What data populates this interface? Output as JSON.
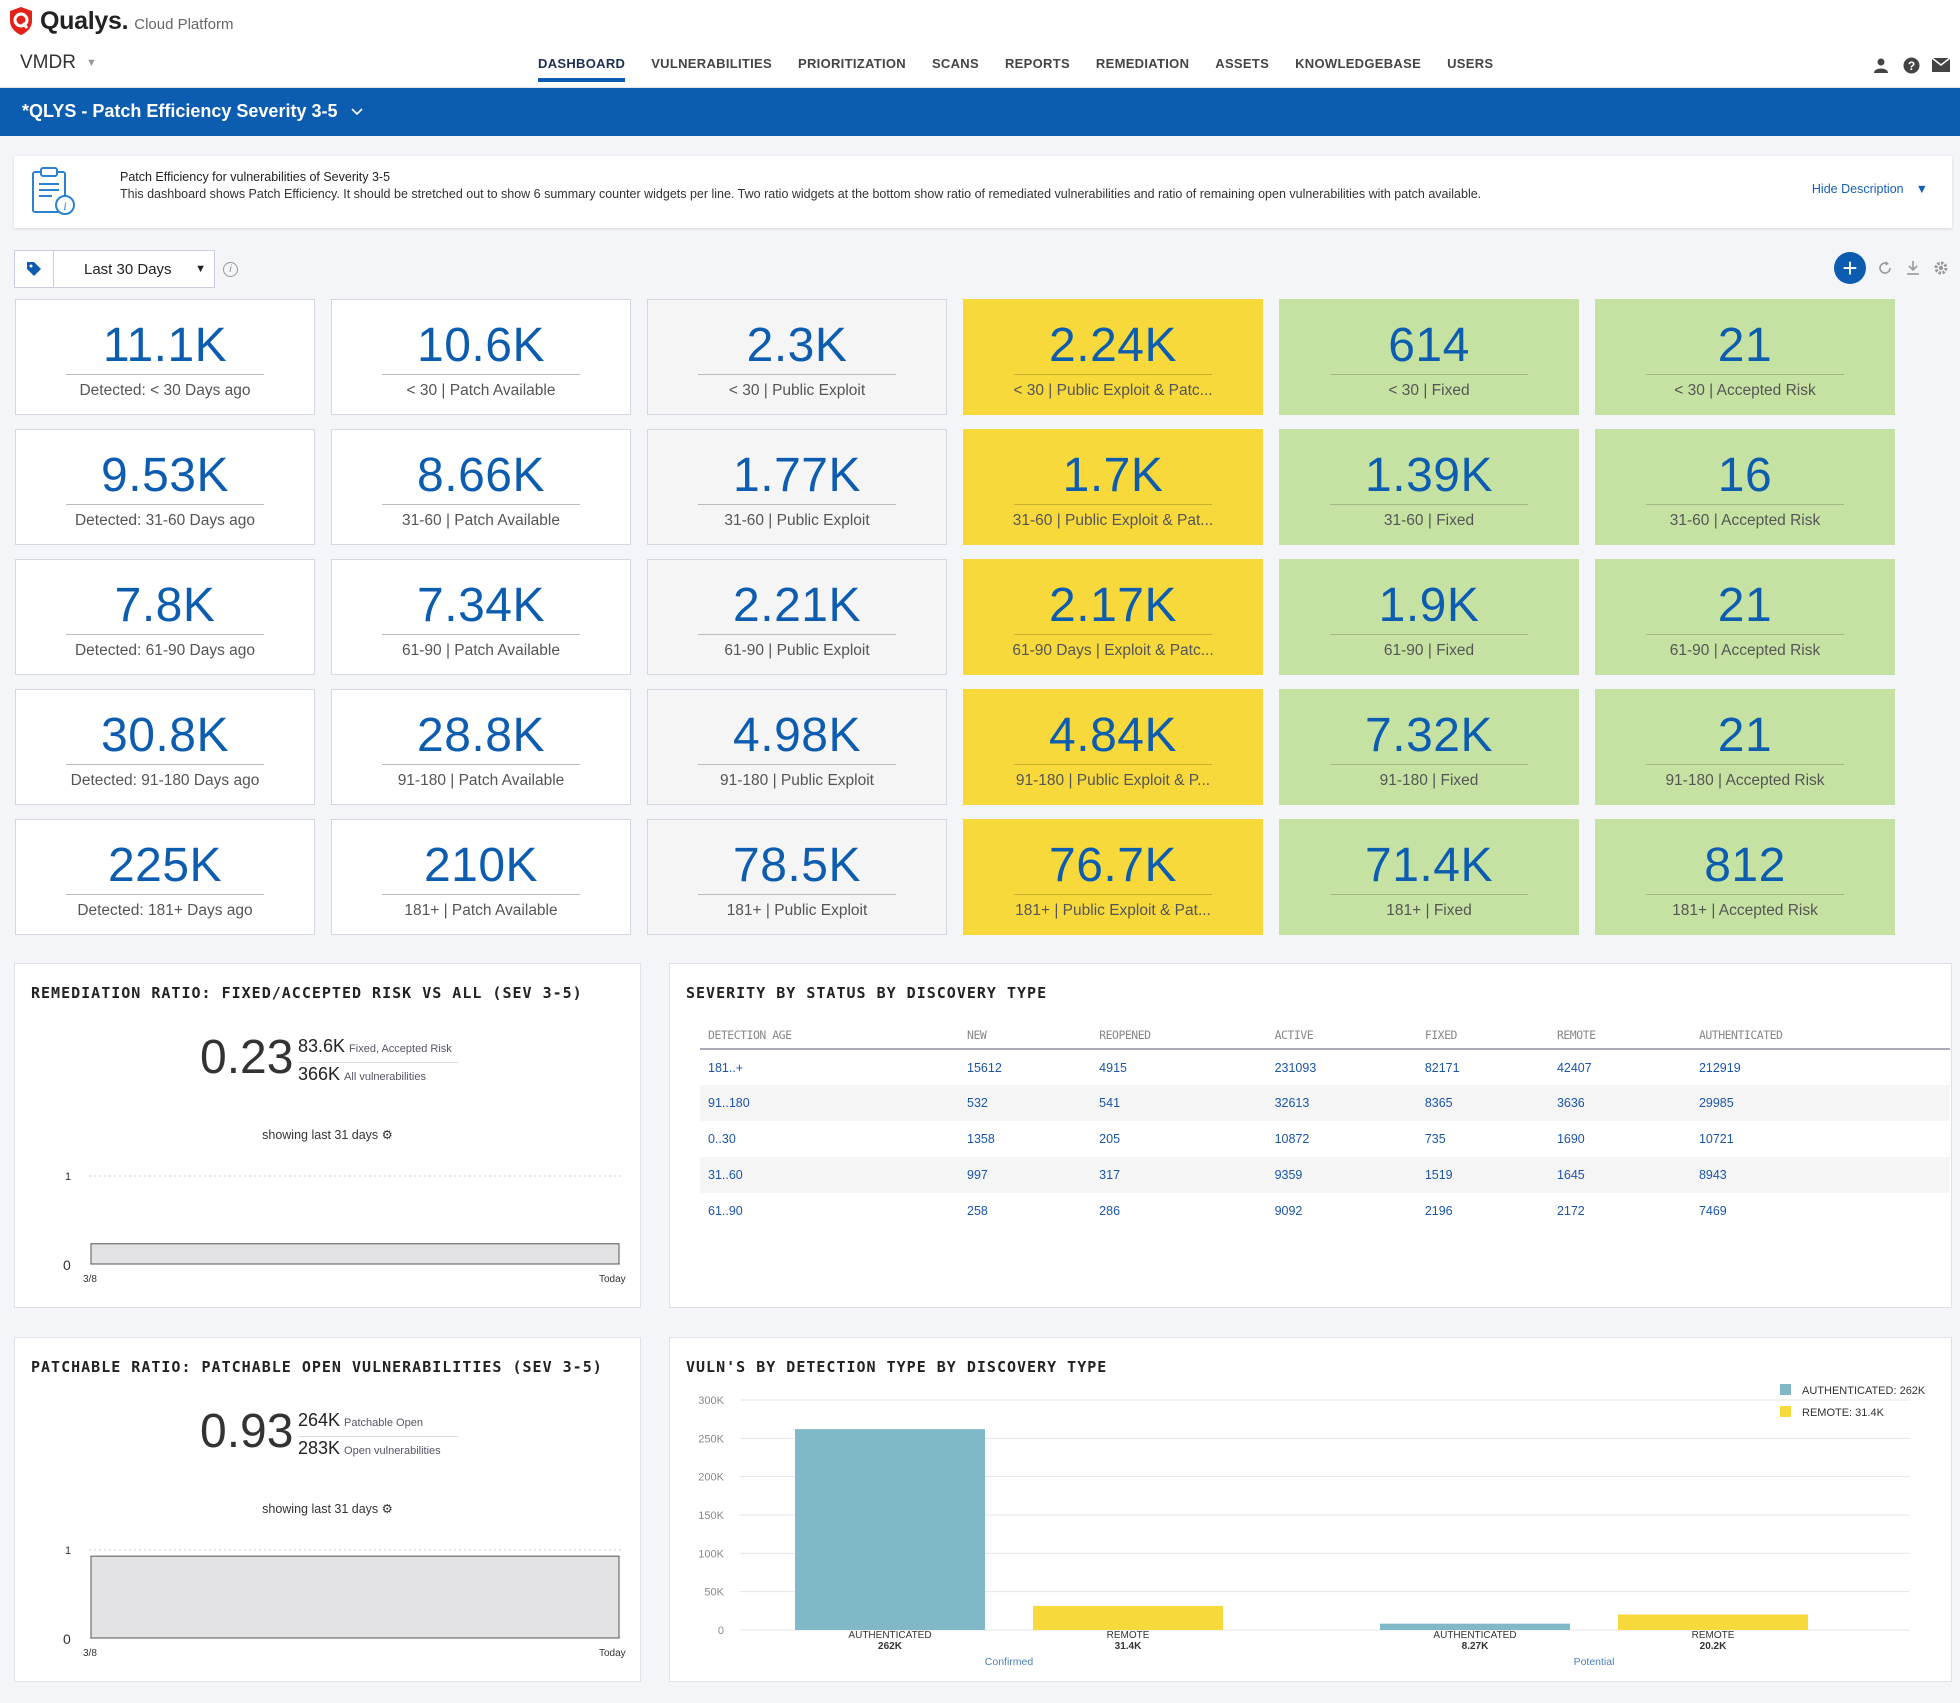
{
  "header": {
    "brand": "Qualys.",
    "platform": "Cloud Platform",
    "module": "VMDR",
    "tabs": [
      "DASHBOARD",
      "VULNERABILITIES",
      "PRIORITIZATION",
      "SCANS",
      "REPORTS",
      "REMEDIATION",
      "ASSETS",
      "KNOWLEDGEBASE",
      "USERS"
    ]
  },
  "dashboard": {
    "title": "*QLYS - Patch Efficiency Severity 3-5",
    "desc_title": "Patch Efficiency for vulnerabilities of Severity 3-5",
    "desc_text": "This dashboard shows Patch Efficiency. It should be stretched out to show 6 summary counter widgets per line. Two ratio widgets at the bottom show ratio of remediated vulnerabilities and ratio of remaining open vulnerabilities with patch available.",
    "hide_label": "Hide Description",
    "filter_value": "Last 30 Days"
  },
  "colors": {
    "brand": "#0c5cb0",
    "yellow": "#f7d93c",
    "green": "#c6e2a3",
    "teal": "#7fb9c7"
  },
  "cards": [
    {
      "v": "11.1K",
      "l": "Detected: < 30 Days ago",
      "c": "white"
    },
    {
      "v": "10.6K",
      "l": "< 30 | Patch Available",
      "c": "white"
    },
    {
      "v": "2.3K",
      "l": "< 30 | Public Exploit",
      "c": "gray"
    },
    {
      "v": "2.24K",
      "l": "< 30 | Public Exploit & Patc...",
      "c": "yellow"
    },
    {
      "v": "614",
      "l": "< 30 | Fixed",
      "c": "green"
    },
    {
      "v": "21",
      "l": "< 30 | Accepted Risk",
      "c": "green"
    },
    {
      "v": "9.53K",
      "l": "Detected: 31-60 Days ago",
      "c": "white"
    },
    {
      "v": "8.66K",
      "l": "31-60 | Patch Available",
      "c": "white"
    },
    {
      "v": "1.77K",
      "l": "31-60 | Public Exploit",
      "c": "gray"
    },
    {
      "v": "1.7K",
      "l": "31-60 | Public Exploit & Pat...",
      "c": "yellow"
    },
    {
      "v": "1.39K",
      "l": "31-60 | Fixed",
      "c": "green"
    },
    {
      "v": "16",
      "l": "31-60 | Accepted Risk",
      "c": "green"
    },
    {
      "v": "7.8K",
      "l": "Detected: 61-90 Days ago",
      "c": "white"
    },
    {
      "v": "7.34K",
      "l": "61-90 | Patch Available",
      "c": "white"
    },
    {
      "v": "2.21K",
      "l": "61-90 | Public Exploit",
      "c": "gray"
    },
    {
      "v": "2.17K",
      "l": "61-90 Days | Exploit & Patc...",
      "c": "yellow"
    },
    {
      "v": "1.9K",
      "l": "61-90 | Fixed",
      "c": "green"
    },
    {
      "v": "21",
      "l": "61-90 | Accepted Risk",
      "c": "green"
    },
    {
      "v": "30.8K",
      "l": "Detected: 91-180 Days ago",
      "c": "white"
    },
    {
      "v": "28.8K",
      "l": "91-180 | Patch Available",
      "c": "white"
    },
    {
      "v": "4.98K",
      "l": "91-180 | Public Exploit",
      "c": "gray"
    },
    {
      "v": "4.84K",
      "l": "91-180 | Public Exploit & P...",
      "c": "yellow"
    },
    {
      "v": "7.32K",
      "l": "91-180 | Fixed",
      "c": "green"
    },
    {
      "v": "21",
      "l": "91-180 | Accepted Risk",
      "c": "green"
    },
    {
      "v": "225K",
      "l": "Detected: 181+ Days ago",
      "c": "white"
    },
    {
      "v": "210K",
      "l": "181+ | Patch Available",
      "c": "white"
    },
    {
      "v": "78.5K",
      "l": "181+ | Public Exploit",
      "c": "gray"
    },
    {
      "v": "76.7K",
      "l": "181+ | Public Exploit & Pat...",
      "c": "yellow"
    },
    {
      "v": "71.4K",
      "l": "181+ | Fixed",
      "c": "green"
    },
    {
      "v": "812",
      "l": "181+ | Accepted Risk",
      "c": "green"
    }
  ],
  "remediation": {
    "title": "REMEDIATION RATIO: FIXED/ACCEPTED RISK VS ALL (SEV 3-5)",
    "ratio": "0.23",
    "num": "83.6K",
    "num_label": "Fixed, Accepted Risk",
    "den": "366K",
    "den_label": "All vulnerabilities",
    "showing": "showing last 31 days",
    "y_top": "1",
    "y_bottom": "0",
    "x_start": "3/8",
    "x_end": "Today"
  },
  "patchable": {
    "title": "PATCHABLE RATIO: PATCHABLE OPEN VULNERABILITIES (SEV 3-5)",
    "ratio": "0.93",
    "num": "264K",
    "num_label": "Patchable Open",
    "den": "283K",
    "den_label": "Open vulnerabilities",
    "showing": "showing last 31 days",
    "y_top": "1",
    "y_bottom": "0",
    "x_start": "3/8",
    "x_end": "Today"
  },
  "severity": {
    "title": "SEVERITY BY STATUS BY DISCOVERY TYPE",
    "columns": [
      "DETECTION AGE",
      "NEW",
      "REOPENED",
      "ACTIVE",
      "FIXED",
      "REMOTE",
      "AUTHENTICATED"
    ],
    "rows": [
      [
        "181..+",
        "15612",
        "4915",
        "231093",
        "82171",
        "42407",
        "212919"
      ],
      [
        "91..180",
        "532",
        "541",
        "32613",
        "8365",
        "3636",
        "29985"
      ],
      [
        "0..30",
        "1358",
        "205",
        "10872",
        "735",
        "1690",
        "10721"
      ],
      [
        "31..60",
        "997",
        "317",
        "9359",
        "1519",
        "1645",
        "8943"
      ],
      [
        "61..90",
        "258",
        "286",
        "9092",
        "2196",
        "2172",
        "7469"
      ]
    ]
  },
  "vulns": {
    "title": "VULN'S BY DETECTION TYPE BY DISCOVERY TYPE"
  },
  "chart_data": [
    {
      "type": "line",
      "title": "REMEDIATION RATIO: FIXED/ACCEPTED RISK VS ALL (SEV 3-5)",
      "x": [
        "3/8",
        "Today"
      ],
      "ylim": [
        0,
        1
      ],
      "values": [
        0.23,
        0.23
      ]
    },
    {
      "type": "line",
      "title": "PATCHABLE RATIO: PATCHABLE OPEN VULNERABILITIES (SEV 3-5)",
      "x": [
        "3/8",
        "Today"
      ],
      "ylim": [
        0,
        1
      ],
      "values": [
        0.93,
        0.93
      ]
    },
    {
      "type": "bar",
      "title": "VULN'S BY DETECTION TYPE BY DISCOVERY TYPE",
      "categories": [
        "Confirmed",
        "Potential"
      ],
      "ylim": [
        0,
        300000
      ],
      "yticks": [
        "0",
        "50K",
        "100K",
        "150K",
        "200K",
        "250K",
        "300K"
      ],
      "series": [
        {
          "name": "AUTHENTICATED: 262K",
          "label": "AUTHENTICATED",
          "values": [
            262000,
            8270
          ],
          "labels": [
            "262K",
            "8.27K"
          ],
          "color": "#7fb9c7"
        },
        {
          "name": "REMOTE: 31.4K",
          "label": "REMOTE",
          "values": [
            31400,
            20200
          ],
          "labels": [
            "31.4K",
            "20.2K"
          ],
          "color": "#f7d93c"
        }
      ],
      "legend": "top-right"
    }
  ]
}
